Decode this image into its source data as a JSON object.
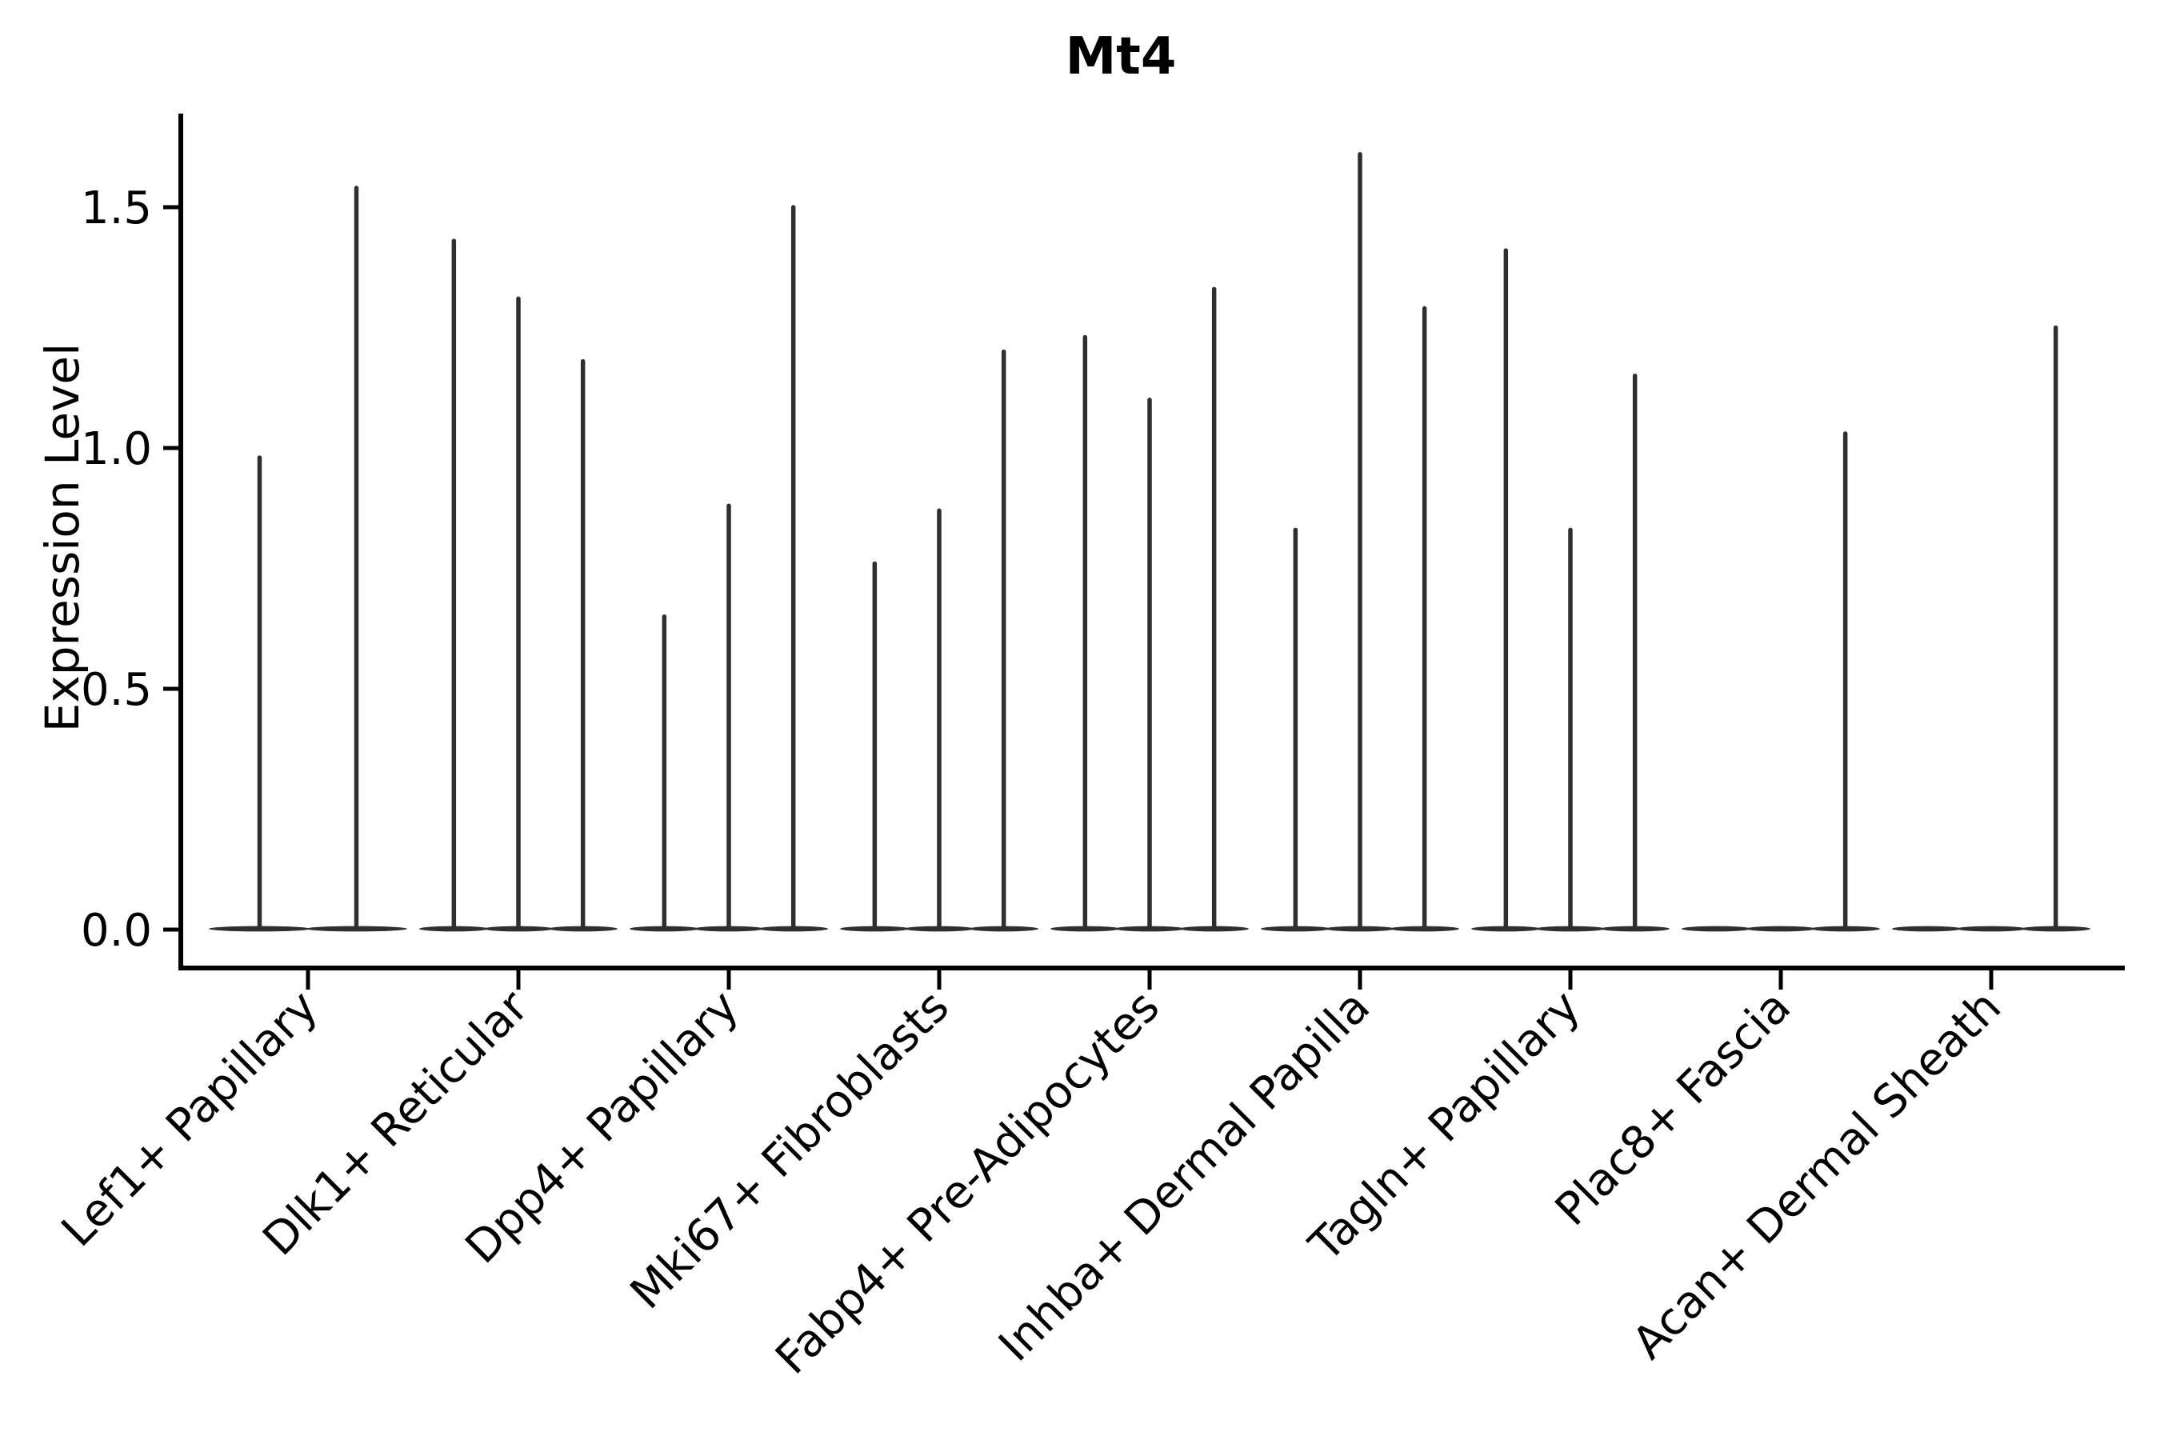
{
  "figure": {
    "title": "Mt4",
    "y_axis": {
      "label": "Expression Level",
      "ticks": [
        "0.0",
        "0.5",
        "1.0",
        "1.5"
      ],
      "tick_values": [
        0.0,
        0.5,
        1.0,
        1.5
      ]
    },
    "x_axis": {
      "labels": [
        "Lef1+ Papillary",
        "Dlk1+ Reticular",
        "Dpp4+ Papillary",
        "Mki67+ Fibroblasts",
        "Fabp4+ Pre-Adipocytes",
        "Inhba+ Dermal Papilla",
        "Tagln+ Papillary",
        "Plac8+ Fascia",
        "Acan+ Dermal Sheath"
      ]
    }
  },
  "chart_data": {
    "type": "violin",
    "title": "Mt4",
    "xlabel": "",
    "ylabel": "Expression Level",
    "ylim": [
      0,
      1.69
    ],
    "yticks": [
      0.0,
      0.5,
      1.0,
      1.5
    ],
    "ytick_labels": [
      "0.0",
      "0.5",
      "1.0",
      "1.5"
    ],
    "grid": false,
    "legend": "none",
    "categories": [
      "Lef1+ Papillary",
      "Dlk1+ Reticular",
      "Dpp4+ Papillary",
      "Mki67+ Fibroblasts",
      "Fabp4+ Pre-Adipocytes",
      "Inhba+ Dermal Papilla",
      "Tagln+ Papillary",
      "Plac8+ Fascia",
      "Acan+ Dermal Sheath"
    ],
    "groups": [
      {
        "category": "Lef1+ Papillary",
        "violin_max_values": [
          0.98,
          1.54
        ]
      },
      {
        "category": "Dlk1+ Reticular",
        "violin_max_values": [
          1.43,
          1.31,
          1.18
        ]
      },
      {
        "category": "Dpp4+ Papillary",
        "violin_max_values": [
          0.65,
          0.88,
          1.5
        ]
      },
      {
        "category": "Mki67+ Fibroblasts",
        "violin_max_values": [
          0.76,
          0.87,
          1.2
        ]
      },
      {
        "category": "Fabp4+ Pre-Adipocytes",
        "violin_max_values": [
          1.23,
          1.1,
          1.33
        ]
      },
      {
        "category": "Inhba+ Dermal Papilla",
        "violin_max_values": [
          0.83,
          1.61,
          1.29
        ]
      },
      {
        "category": "Tagln+ Papillary",
        "violin_max_values": [
          1.41,
          0.83,
          1.15
        ]
      },
      {
        "category": "Plac8+ Fascia",
        "violin_max_values": [
          0,
          0,
          1.03
        ]
      },
      {
        "category": "Acan+ Dermal Sheath",
        "violin_max_values": [
          0,
          0,
          1.25
        ]
      }
    ],
    "description": "Violin plot of Mt4 expression per fibroblast cluster; each category holds 2-3 ultra-thin violins: a flat base band at 0 and a thin spike reaching the listed max expression value (0 = no spike)"
  },
  "colors": {
    "violin": "#2f2f2f",
    "axis": "#000000",
    "text": "#000000",
    "background": "#ffffff"
  }
}
